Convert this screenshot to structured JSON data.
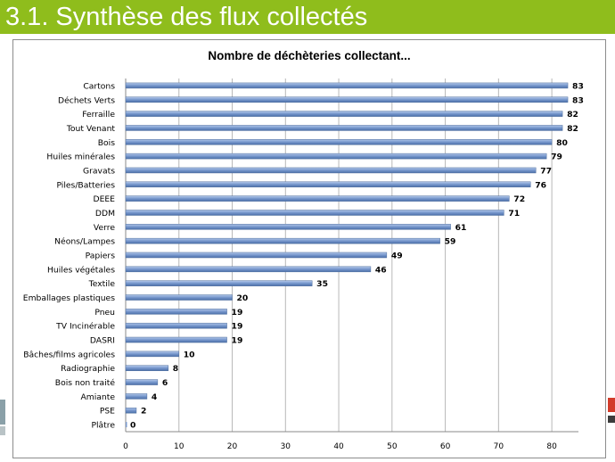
{
  "slide": {
    "title": "3.1. Synthèse des flux collectés",
    "brand_color": "#8fbd1c"
  },
  "chart_data": {
    "type": "bar",
    "orientation": "horizontal",
    "title": "Nombre de déchèteries collectant...",
    "xlabel": "",
    "ylabel": "",
    "xlim": [
      0,
      85
    ],
    "xticks": [
      0,
      10,
      20,
      30,
      40,
      50,
      60,
      70,
      80
    ],
    "grid": "vertical",
    "bar_color": "#7b9bcf",
    "data_labels": true,
    "categories": [
      "Cartons",
      "Déchets Verts",
      "Ferraille",
      "Tout Venant",
      "Bois",
      "Huiles minérales",
      "Gravats",
      "Piles/Batteries",
      "DEEE",
      "DDM",
      "Verre",
      "Néons/Lampes",
      "Papiers",
      "Huiles végétales",
      "Textile",
      "Emballages plastiques",
      "Pneu",
      "TV Incinérable",
      "DASRI",
      "Bâches/films agricoles",
      "Radiographie",
      "Bois non traité",
      "Amiante",
      "PSE",
      "Plâtre"
    ],
    "values": [
      83,
      83,
      82,
      82,
      80,
      79,
      77,
      76,
      72,
      71,
      61,
      59,
      49,
      46,
      35,
      20,
      19,
      19,
      19,
      10,
      8,
      6,
      4,
      2,
      0
    ]
  }
}
